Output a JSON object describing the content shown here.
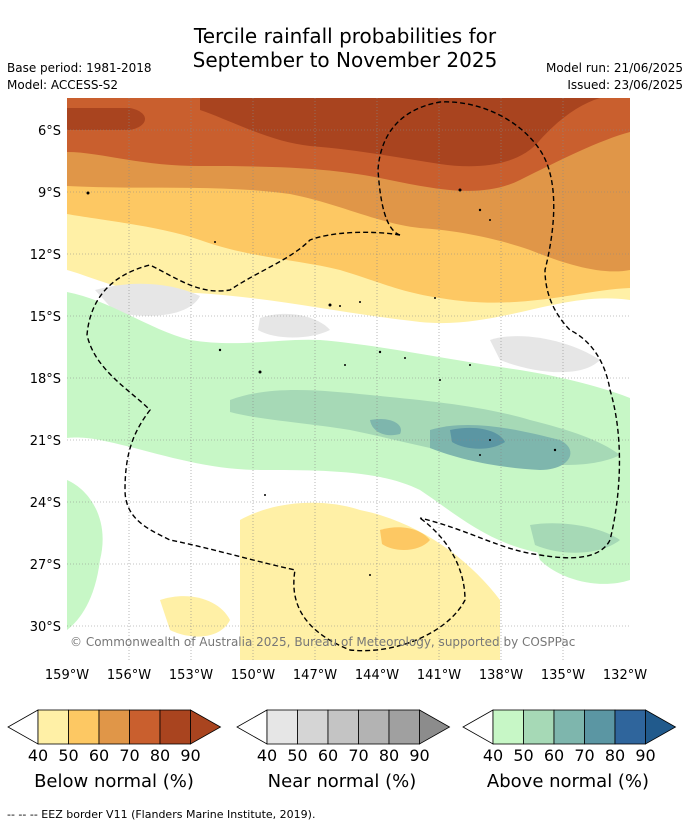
{
  "title_line1": "Tercile rainfall probabilities for",
  "title_line2": "September to November 2025",
  "base_period": "Base period: 1981-2018",
  "model": "Model: ACCESS-S2",
  "model_run": "Model run: 21/06/2025",
  "issued": "Issued: 23/06/2025",
  "lat_labels": [
    "6°S",
    "9°S",
    "12°S",
    "15°S",
    "18°S",
    "21°S",
    "24°S",
    "27°S",
    "30°S"
  ],
  "lon_labels": [
    "159°W",
    "156°W",
    "153°W",
    "150°W",
    "147°W",
    "144°W",
    "141°W",
    "138°W",
    "135°W",
    "132°W"
  ],
  "copyright": "© Commonwealth of Australia 2025, Bureau of Meteorology, supported by COSPPac",
  "colorbars": [
    {
      "label": "Below normal (%)",
      "ticks": [
        "40",
        "50",
        "60",
        "70",
        "80",
        "90"
      ],
      "colors": [
        "#fff0a6",
        "#fdc863",
        "#e09648",
        "#c95f2e",
        "#a9441f",
        "#a9441f"
      ]
    },
    {
      "label": "Near normal (%)",
      "ticks": [
        "40",
        "50",
        "60",
        "70",
        "80",
        "90"
      ],
      "colors": [
        "#e6e6e6",
        "#d5d5d5",
        "#c4c4c4",
        "#b3b3b3",
        "#a0a0a0",
        "#8c8c8c"
      ]
    },
    {
      "label": "Above normal (%)",
      "ticks": [
        "40",
        "50",
        "60",
        "70",
        "80",
        "90"
      ],
      "colors": [
        "#c7f7c6",
        "#a6d9b6",
        "#7eb6ad",
        "#5b96a3",
        "#2f659c",
        "#215a8c"
      ]
    }
  ],
  "footer": "-- -- -- EEZ border V11 (Flanders Marine Institute, 2019)."
}
